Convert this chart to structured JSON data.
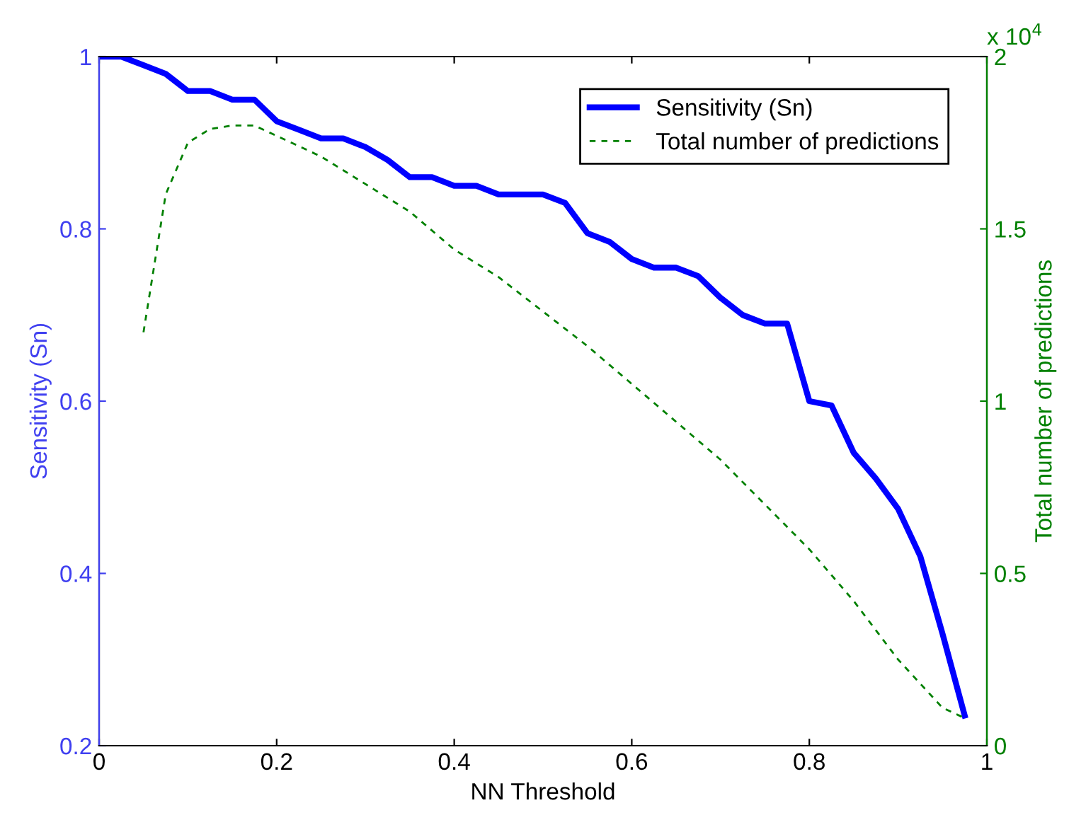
{
  "chart_data": {
    "type": "line",
    "xlabel": "NN Threshold",
    "ylabel": "Sensitivity (Sn)",
    "y2label": "Total number of predictions",
    "xlim": [
      0,
      1
    ],
    "xticks": [
      0,
      0.2,
      0.4,
      0.6,
      0.8,
      1
    ],
    "ylim": [
      0.2,
      1
    ],
    "yticks": [
      0.2,
      0.4,
      0.6,
      0.8,
      1
    ],
    "y2lim": [
      0,
      2
    ],
    "y2ticks": [
      0,
      0.5,
      1,
      1.5,
      2
    ],
    "annotations": [
      "x 10$^{4}$"
    ],
    "legend": "top right",
    "grid": false,
    "marker": "none",
    "series": [
      {
        "name": "Sensitivity (Sn)",
        "color": "#0000ff",
        "line_style": "solid",
        "x": [
          0,
          0.025,
          0.05,
          0.075,
          0.1,
          0.125,
          0.15,
          0.175,
          0.2,
          0.225,
          0.25,
          0.275,
          0.3,
          0.325,
          0.35,
          0.375,
          0.4,
          0.425,
          0.45,
          0.475,
          0.5,
          0.525,
          0.55,
          0.575,
          0.6,
          0.625,
          0.65,
          0.675,
          0.7,
          0.725,
          0.75,
          0.775,
          0.8,
          0.825,
          0.85,
          0.875,
          0.9,
          0.925,
          0.95,
          0.975
        ],
        "values": [
          1,
          1,
          0.99,
          0.98,
          0.96,
          0.96,
          0.95,
          0.95,
          0.925,
          0.915,
          0.905,
          0.905,
          0.895,
          0.88,
          0.86,
          0.86,
          0.85,
          0.85,
          0.84,
          0.84,
          0.84,
          0.83,
          0.795,
          0.785,
          0.765,
          0.755,
          0.755,
          0.745,
          0.72,
          0.7,
          0.69,
          0.69,
          0.6,
          0.595,
          0.54,
          0.51,
          0.475,
          0.42,
          0.33,
          0.235
        ]
      },
      {
        "name": "Total number of predictions",
        "color": "#008000",
        "line_style": "dashed",
        "axis": "y2",
        "x": [
          0.05,
          0.075,
          0.1,
          0.125,
          0.15,
          0.175,
          0.2,
          0.25,
          0.3,
          0.35,
          0.4,
          0.45,
          0.5,
          0.55,
          0.6,
          0.65,
          0.7,
          0.75,
          0.8,
          0.85,
          0.9,
          0.95,
          0.975
        ],
        "values": [
          1.2,
          1.6,
          1.75,
          1.79,
          1.8,
          1.8,
          1.77,
          1.71,
          1.63,
          1.55,
          1.44,
          1.36,
          1.26,
          1.16,
          1.05,
          0.94,
          0.83,
          0.7,
          0.57,
          0.42,
          0.25,
          0.11,
          0.08
        ]
      }
    ]
  }
}
